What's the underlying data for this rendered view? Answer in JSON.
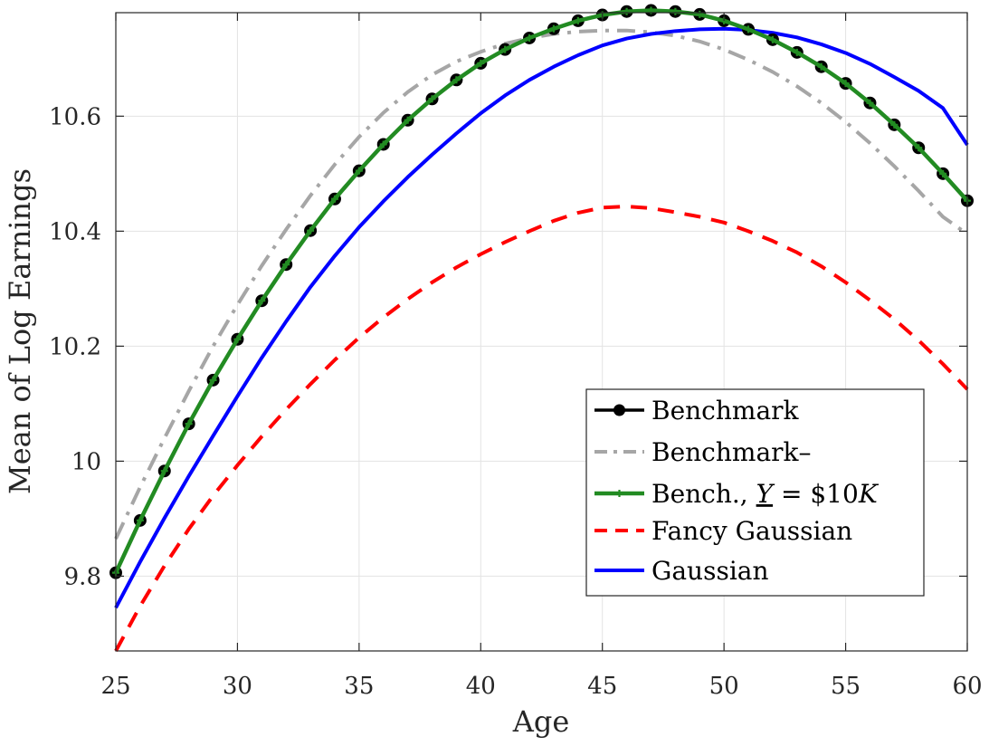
{
  "chart_data": {
    "type": "line",
    "xlabel": "Age",
    "ylabel": "Mean of Log Earnings",
    "xlim": [
      25,
      60
    ],
    "ylim": [
      9.67,
      10.78
    ],
    "xticks": [
      25,
      30,
      35,
      40,
      45,
      50,
      55,
      60
    ],
    "yticks": [
      9.8,
      10,
      10.2,
      10.4,
      10.6
    ],
    "ytick_labels": [
      "9.8",
      "10",
      "10.2",
      "10.4",
      "10.6"
    ],
    "grid": true,
    "legend_position": "lower-right",
    "x": [
      25,
      26,
      27,
      28,
      29,
      30,
      31,
      32,
      33,
      34,
      35,
      36,
      37,
      38,
      39,
      40,
      41,
      42,
      43,
      44,
      45,
      46,
      47,
      48,
      49,
      50,
      51,
      52,
      53,
      54,
      55,
      56,
      57,
      58,
      59,
      60
    ],
    "series": [
      {
        "name": "Benchmark",
        "style": "solid-circle-markers",
        "color": "#000000",
        "values": [
          9.806,
          9.897,
          9.983,
          10.065,
          10.141,
          10.212,
          10.279,
          10.342,
          10.401,
          10.456,
          10.505,
          10.551,
          10.593,
          10.63,
          10.663,
          10.692,
          10.716,
          10.736,
          10.752,
          10.766,
          10.776,
          10.782,
          10.784,
          10.782,
          10.777,
          10.766,
          10.751,
          10.733,
          10.711,
          10.686,
          10.657,
          10.623,
          10.585,
          10.545,
          10.5,
          10.453
        ]
      },
      {
        "name": "Benchmark–",
        "style": "dash-dot",
        "color": "#a6a6a6",
        "values": [
          9.865,
          9.955,
          10.04,
          10.122,
          10.2,
          10.272,
          10.34,
          10.403,
          10.462,
          10.516,
          10.564,
          10.606,
          10.642,
          10.672,
          10.695,
          10.712,
          10.726,
          10.736,
          10.743,
          10.747,
          10.749,
          10.749,
          10.746,
          10.74,
          10.73,
          10.716,
          10.698,
          10.677,
          10.652,
          10.623,
          10.59,
          10.553,
          10.513,
          10.47,
          10.425,
          10.395
        ]
      },
      {
        "name": "Bench., Y = $10K",
        "style": "solid-plus-markers",
        "color": "#228b22",
        "values": [
          9.806,
          9.897,
          9.983,
          10.065,
          10.141,
          10.212,
          10.279,
          10.342,
          10.401,
          10.456,
          10.505,
          10.551,
          10.593,
          10.63,
          10.663,
          10.692,
          10.716,
          10.736,
          10.752,
          10.766,
          10.776,
          10.782,
          10.784,
          10.782,
          10.777,
          10.766,
          10.751,
          10.733,
          10.711,
          10.686,
          10.657,
          10.623,
          10.585,
          10.545,
          10.5,
          10.453
        ]
      },
      {
        "name": "Fancy Gaussian",
        "style": "dashed",
        "color": "#ff0000",
        "values": [
          9.67,
          9.748,
          9.818,
          9.882,
          9.94,
          9.993,
          10.043,
          10.09,
          10.134,
          10.176,
          10.215,
          10.25,
          10.282,
          10.311,
          10.337,
          10.36,
          10.381,
          10.4,
          10.418,
          10.432,
          10.441,
          10.443,
          10.44,
          10.433,
          10.425,
          10.415,
          10.4,
          10.383,
          10.363,
          10.339,
          10.311,
          10.28,
          10.247,
          10.21,
          10.169,
          10.125
        ]
      },
      {
        "name": "Gaussian",
        "style": "solid",
        "color": "#0000ff",
        "values": [
          9.745,
          9.825,
          9.901,
          9.974,
          10.044,
          10.113,
          10.18,
          10.243,
          10.303,
          10.357,
          10.407,
          10.452,
          10.494,
          10.533,
          10.57,
          10.605,
          10.636,
          10.663,
          10.686,
          10.706,
          10.723,
          10.735,
          10.743,
          10.748,
          10.751,
          10.752,
          10.75,
          10.745,
          10.737,
          10.725,
          10.71,
          10.691,
          10.668,
          10.644,
          10.614,
          10.55
        ]
      }
    ]
  }
}
